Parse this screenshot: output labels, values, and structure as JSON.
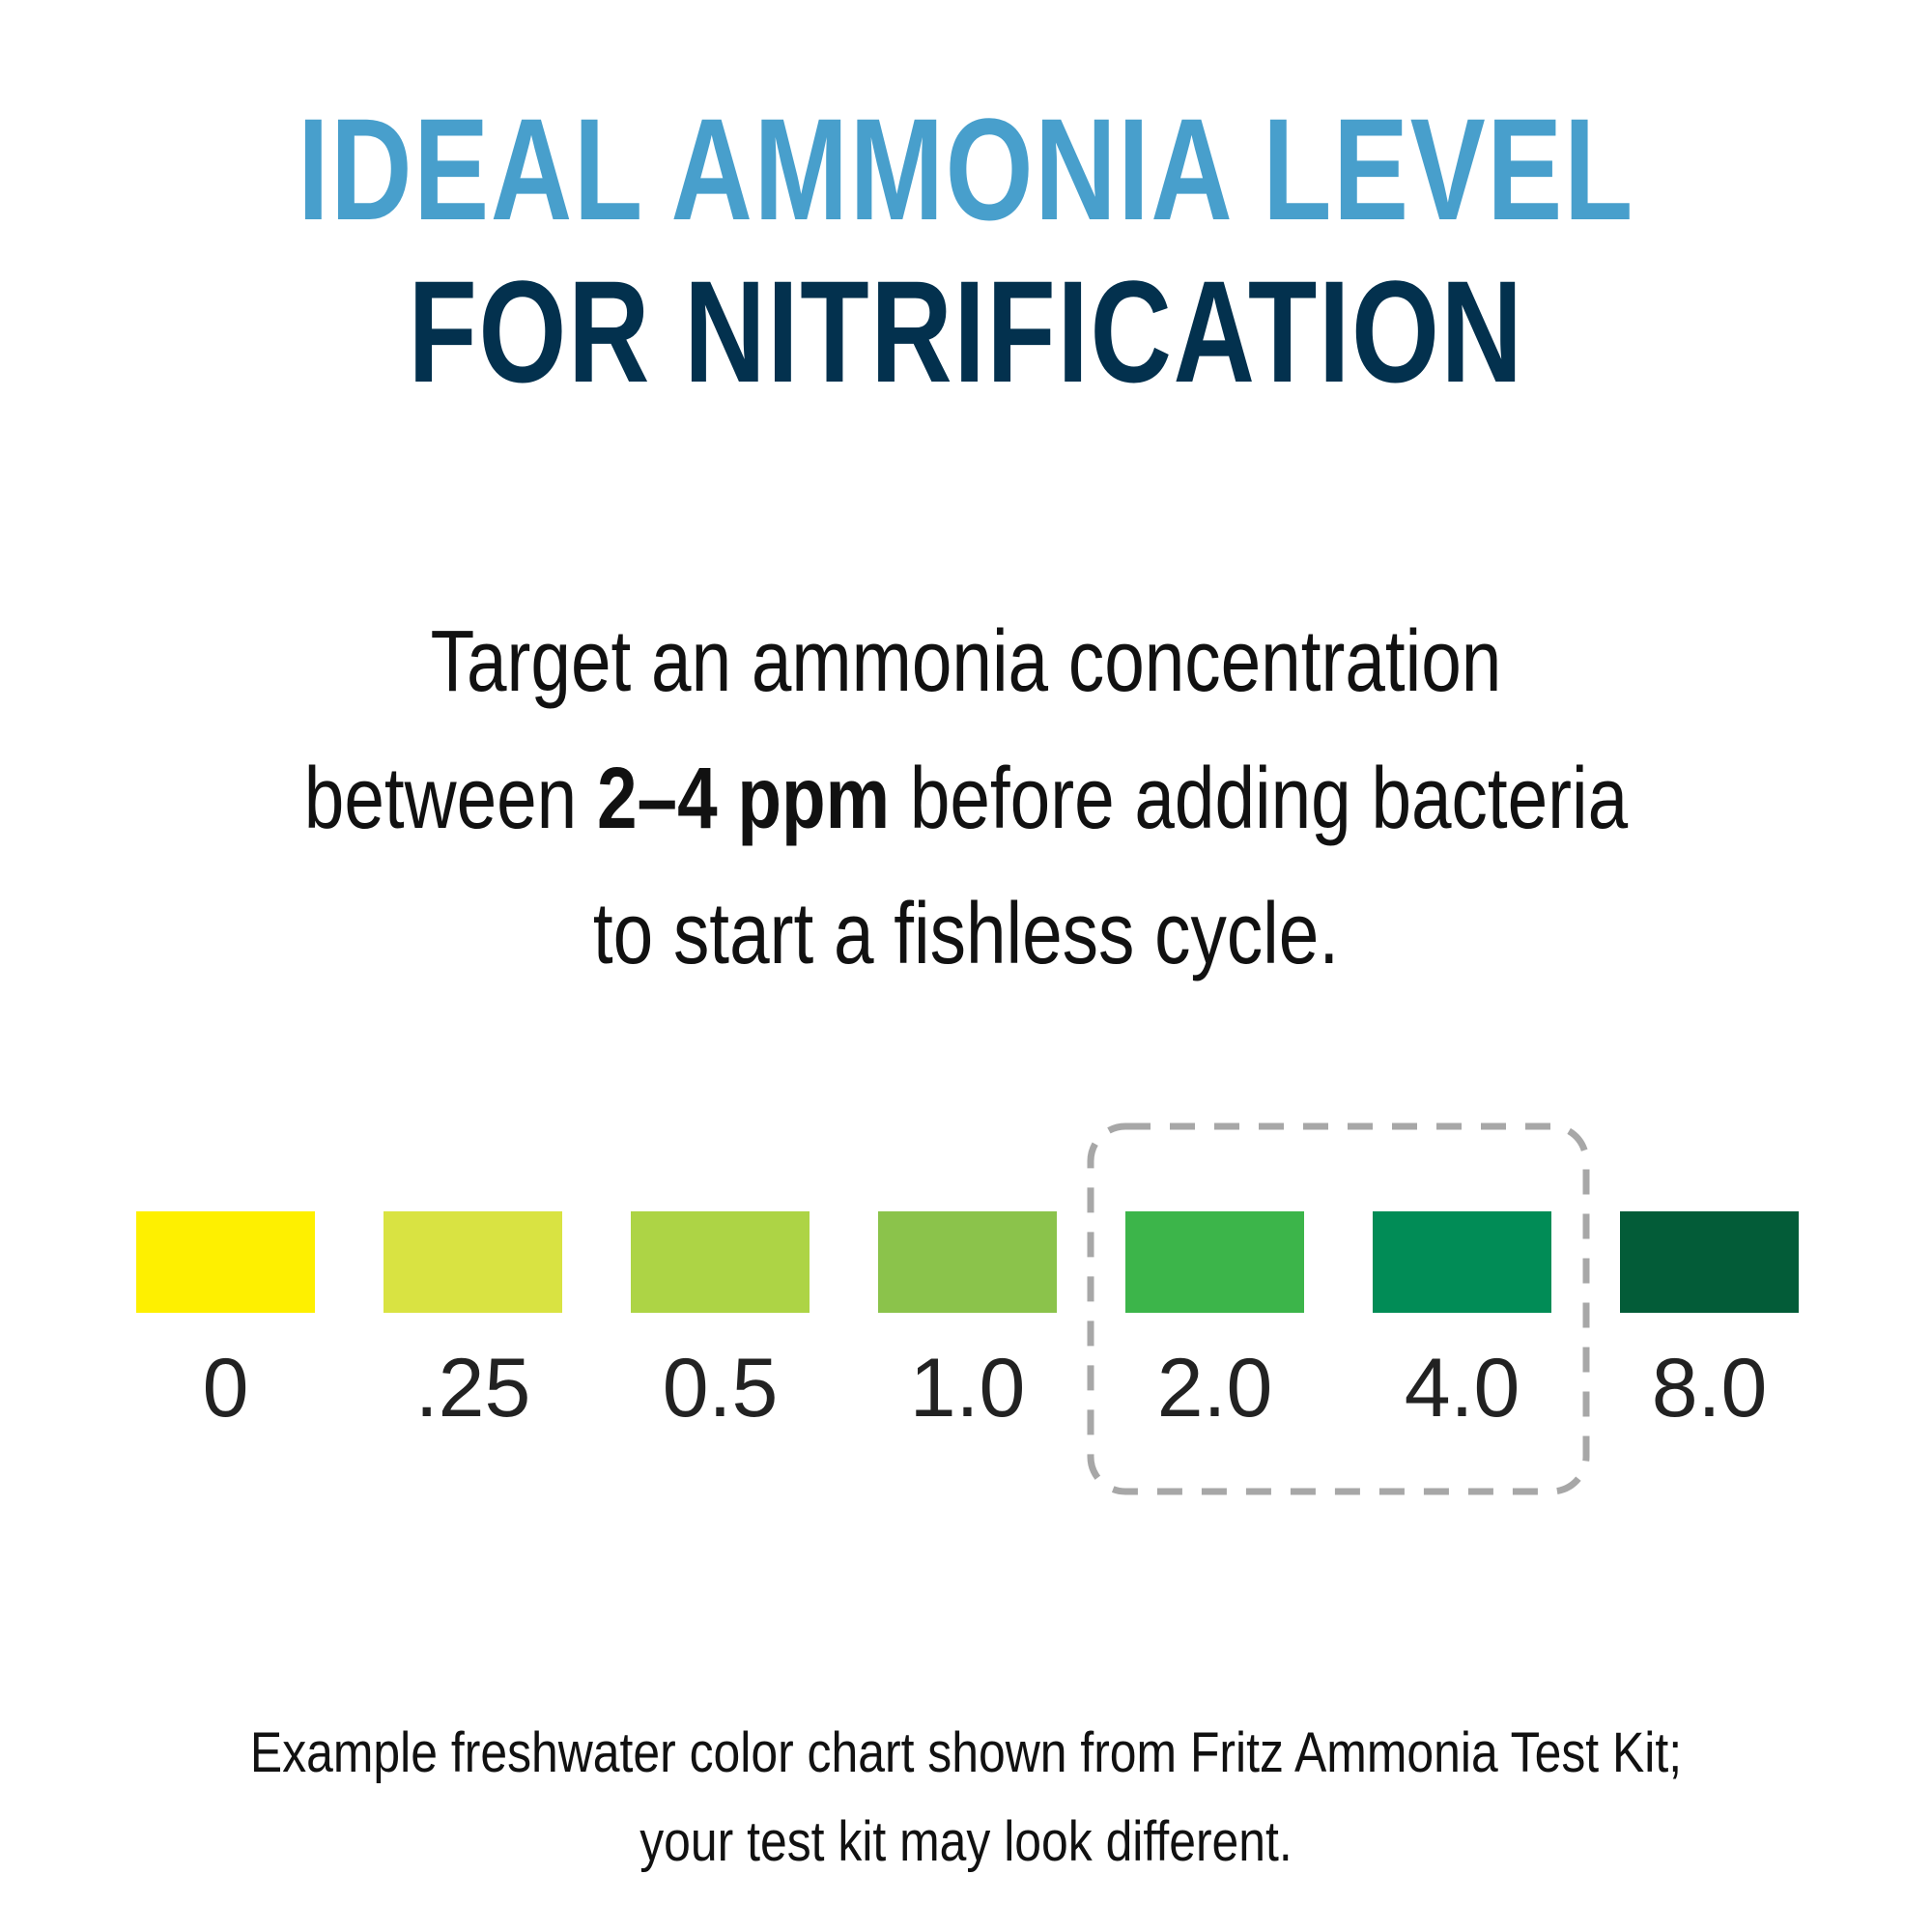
{
  "title": {
    "line1": "IDEAL AMMONIA LEVEL",
    "line2": "FOR NITRIFICATION",
    "line1_color": "#489fcc",
    "line2_color": "#03314e"
  },
  "lead": {
    "line1": "Target an ammonia concentration",
    "line2_before": "between ",
    "line2_bold": "2–4 ppm",
    "line2_after": " before adding bacteria",
    "line3": "to start a fishless cycle."
  },
  "color_chart": {
    "swatches": [
      {
        "label": "0",
        "color": "#fef000"
      },
      {
        "label": ".25",
        "color": "#d9e342"
      },
      {
        "label": "0.5",
        "color": "#add445"
      },
      {
        "label": "1.0",
        "color": "#8bc34b"
      },
      {
        "label": "2.0",
        "color": "#3cb54a"
      },
      {
        "label": "4.0",
        "color": "#018c56"
      },
      {
        "label": "8.0",
        "color": "#035c38"
      }
    ],
    "highlight": {
      "from_index": 4,
      "to_index": 5,
      "stroke_color": "#a7a7a7"
    }
  },
  "footnote": {
    "line1": "Example freshwater color chart shown from Fritz Ammonia Test Kit;",
    "line2": "your test kit may look different."
  }
}
